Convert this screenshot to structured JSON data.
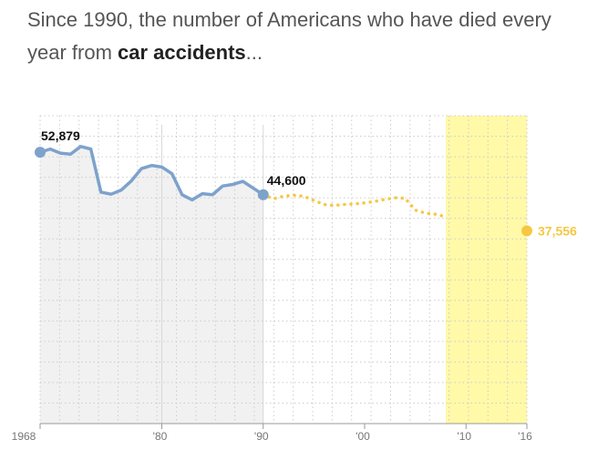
{
  "headline": {
    "prefix": "Since 1990, the number of Americans who have died every year from ",
    "emphasis": "car accidents",
    "suffix": "..."
  },
  "colors": {
    "actual": "#7da2cc",
    "forecast": "#f5c842",
    "highlight_band": "#fff9a8",
    "past_area": "#f1f1f1",
    "grid": "#cccccc",
    "tick_text": "#777777",
    "label_text": "#111111"
  },
  "chart_data": {
    "type": "line",
    "xlim": [
      1968,
      2016
    ],
    "ylim": [
      0,
      60000
    ],
    "x_ticks": [
      {
        "value": 1968,
        "label": "1968"
      },
      {
        "value": 1980,
        "label": "'80"
      },
      {
        "value": 1990,
        "label": "'90"
      },
      {
        "value": 2000,
        "label": "'00"
      },
      {
        "value": 2010,
        "label": "'10"
      },
      {
        "value": 2016,
        "label": "'16"
      }
    ],
    "grid": true,
    "highlight_range": [
      2008,
      2016
    ],
    "series": [
      {
        "kind": "actual",
        "x": [
          1968,
          1969,
          1970,
          1971,
          1972,
          1973,
          1974,
          1975,
          1976,
          1977,
          1978,
          1979,
          1980,
          1981,
          1982,
          1983,
          1984,
          1985,
          1986,
          1987,
          1988,
          1989,
          1990
        ],
        "y": [
          52879,
          53500,
          52700,
          52500,
          54000,
          53500,
          45100,
          44700,
          45500,
          47300,
          49700,
          50300,
          50000,
          48700,
          44600,
          43600,
          44800,
          44600,
          46300,
          46600,
          47200,
          45900,
          44600
        ]
      },
      {
        "kind": "forecast",
        "x": [
          1990,
          1991,
          1992,
          1993,
          1994,
          1995,
          1996,
          1997,
          1998,
          1999,
          2000,
          2001,
          2002,
          2003,
          2004,
          2005,
          2006,
          2007,
          2008
        ],
        "y": [
          44600,
          43800,
          44300,
          44500,
          44300,
          43500,
          42700,
          42500,
          42700,
          42800,
          43000,
          43300,
          43700,
          44000,
          43900,
          41600,
          41000,
          40800,
          40300
        ]
      },
      {
        "kind": "projection",
        "x": [
          2016
        ],
        "y": [
          37556
        ]
      }
    ],
    "annotations": [
      {
        "x": 1968,
        "y": 52879,
        "label": "52,879",
        "series": "actual"
      },
      {
        "x": 1990,
        "y": 44600,
        "label": "44,600",
        "series": "actual"
      },
      {
        "x": 2016,
        "y": 37556,
        "label": "37,556",
        "series": "projection"
      }
    ]
  }
}
